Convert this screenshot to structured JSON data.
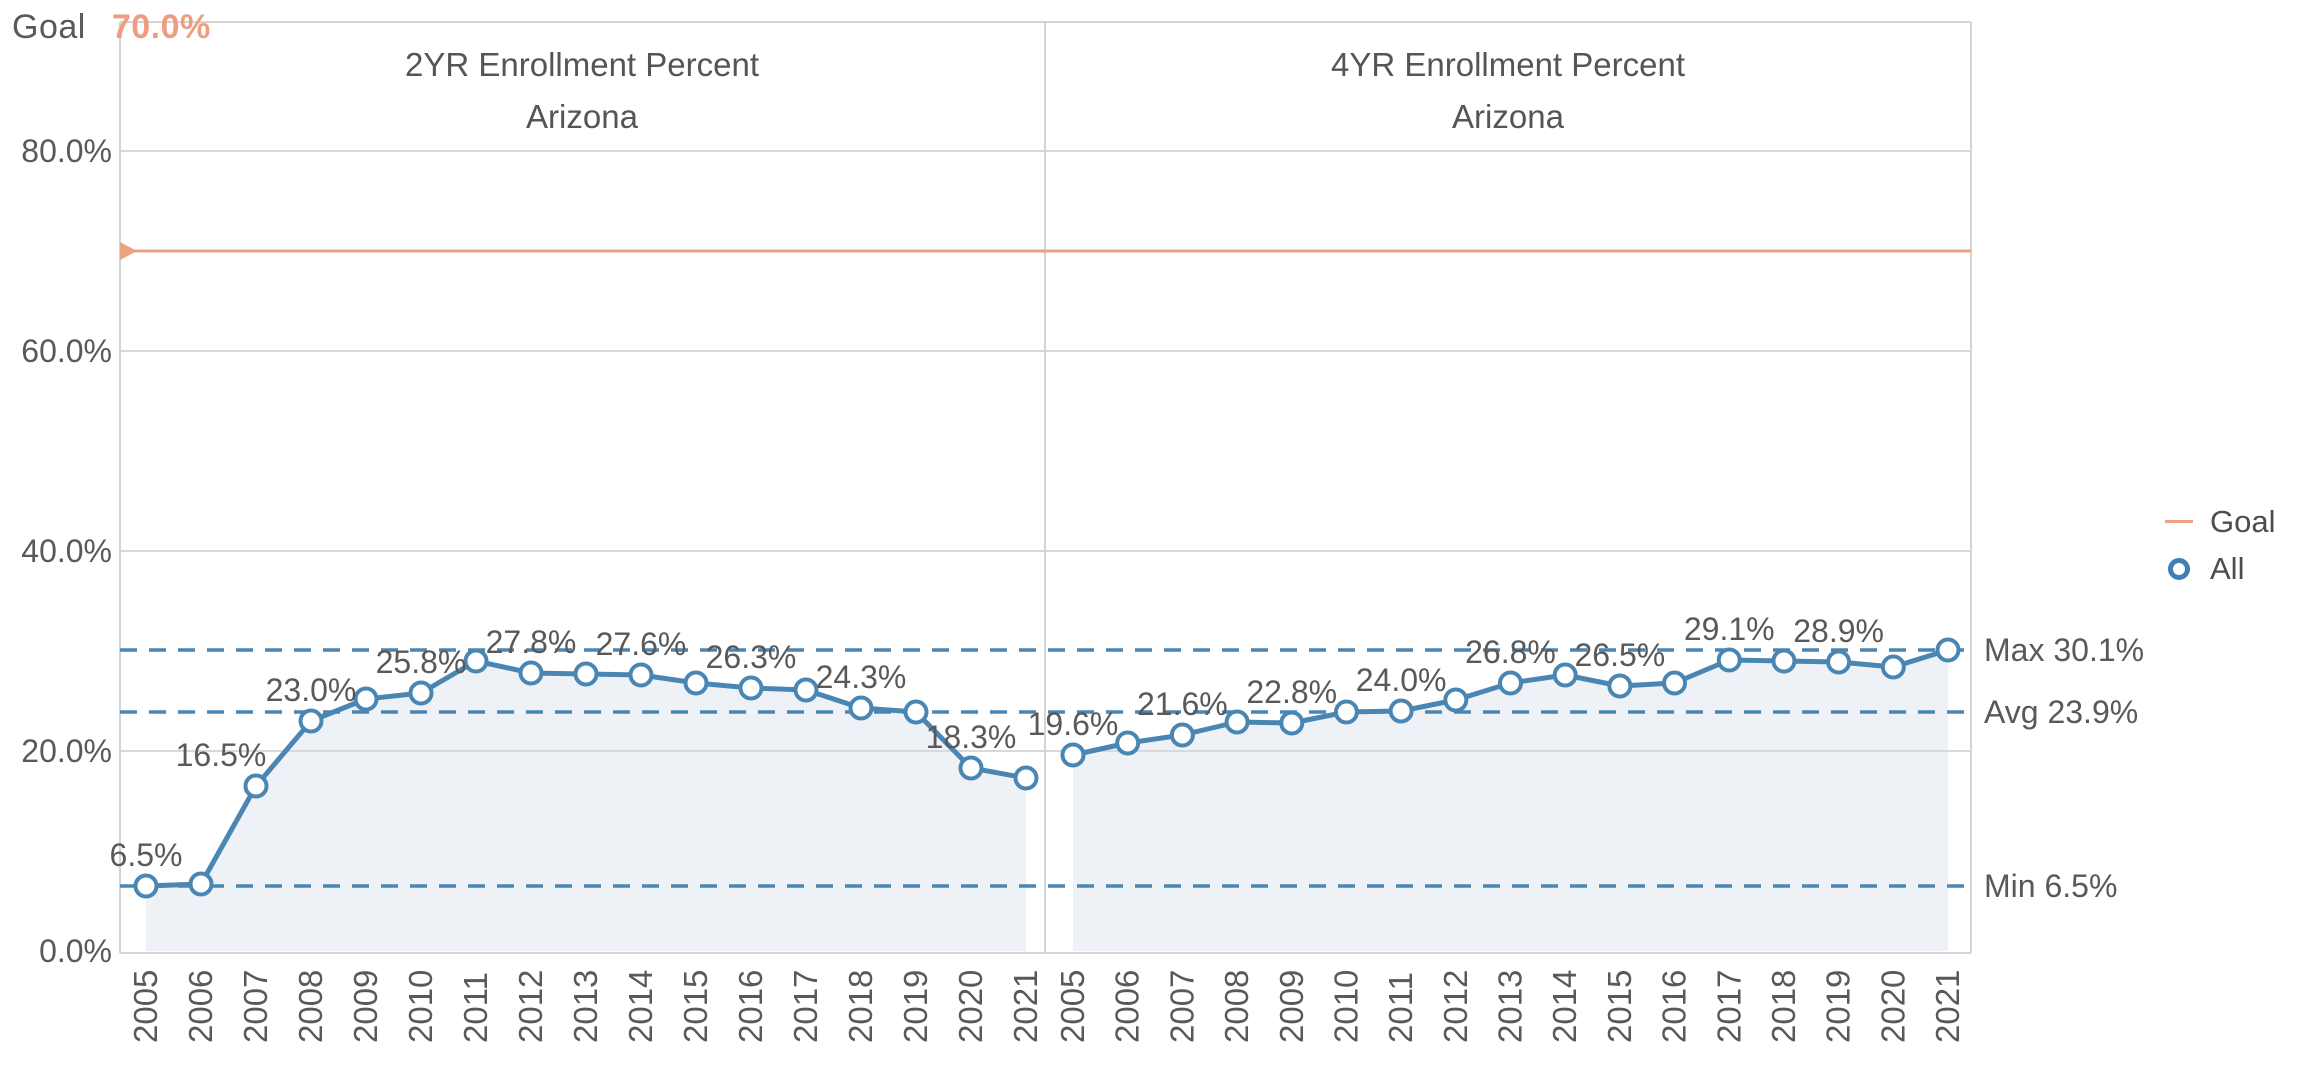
{
  "header": {
    "label": "Goal",
    "value": "70.0%"
  },
  "y_axis": {
    "tick_labels": [
      "0.0%",
      "20.0%",
      "40.0%",
      "60.0%",
      "80.0%"
    ],
    "tick_values": [
      0,
      20,
      40,
      60,
      80
    ]
  },
  "chart_data": [
    {
      "type": "line",
      "title": "2YR Enrollment Percent",
      "subtitle": "Arizona",
      "ylim": [
        0,
        93
      ],
      "grid": true,
      "x": [
        2005,
        2006,
        2007,
        2008,
        2009,
        2010,
        2011,
        2012,
        2013,
        2014,
        2015,
        2016,
        2017,
        2018,
        2019,
        2020,
        2021
      ],
      "series": [
        {
          "name": "All",
          "values": [
            6.5,
            6.7,
            16.5,
            23.0,
            25.2,
            25.8,
            29.0,
            27.8,
            27.7,
            27.6,
            26.8,
            26.3,
            26.1,
            24.3,
            23.9,
            18.3,
            17.3
          ]
        }
      ],
      "point_labels": [
        {
          "year": 2005,
          "label": "6.5%"
        },
        {
          "year": 2007,
          "label": "16.5%"
        },
        {
          "year": 2008,
          "label": "23.0%"
        },
        {
          "year": 2010,
          "label": "25.8%"
        },
        {
          "year": 2012,
          "label": "27.8%"
        },
        {
          "year": 2014,
          "label": "27.6%"
        },
        {
          "year": 2016,
          "label": "26.3%"
        },
        {
          "year": 2018,
          "label": "24.3%"
        },
        {
          "year": 2020,
          "label": "18.3%"
        }
      ]
    },
    {
      "type": "line",
      "title": "4YR Enrollment Percent",
      "subtitle": "Arizona",
      "ylim": [
        0,
        93
      ],
      "grid": true,
      "x": [
        2005,
        2006,
        2007,
        2008,
        2009,
        2010,
        2011,
        2012,
        2013,
        2014,
        2015,
        2016,
        2017,
        2018,
        2019,
        2020,
        2021
      ],
      "series": [
        {
          "name": "All",
          "values": [
            19.6,
            20.8,
            21.6,
            22.9,
            22.8,
            23.9,
            24.0,
            25.1,
            26.8,
            27.6,
            26.5,
            26.8,
            29.1,
            29.0,
            28.9,
            28.4,
            30.1
          ]
        }
      ],
      "point_labels": [
        {
          "year": 2005,
          "label": "19.6%"
        },
        {
          "year": 2007,
          "label": "21.6%"
        },
        {
          "year": 2009,
          "label": "22.8%"
        },
        {
          "year": 2011,
          "label": "24.0%"
        },
        {
          "year": 2013,
          "label": "26.8%"
        },
        {
          "year": 2015,
          "label": "26.5%"
        },
        {
          "year": 2017,
          "label": "29.1%"
        },
        {
          "year": 2019,
          "label": "28.9%"
        }
      ]
    }
  ],
  "reference_lines": {
    "goal": {
      "label": "Goal",
      "value": 70.0
    },
    "max": {
      "label": "Max 30.1%",
      "value": 30.1
    },
    "avg": {
      "label": "Avg 23.9%",
      "value": 23.9
    },
    "min": {
      "label": "Min 6.5%",
      "value": 6.5
    }
  },
  "legend": {
    "items": [
      {
        "label": "Goal",
        "swatch": "line"
      },
      {
        "label": "All",
        "swatch": "ring"
      }
    ]
  },
  "colors": {
    "series": "#4a86b4",
    "series_fill": "#eef2f7",
    "goal_line": "#eda183",
    "goal_text": "#ef9d80",
    "grid": "#d9d9d9",
    "border": "#d4d4d4",
    "text": "#595959"
  }
}
